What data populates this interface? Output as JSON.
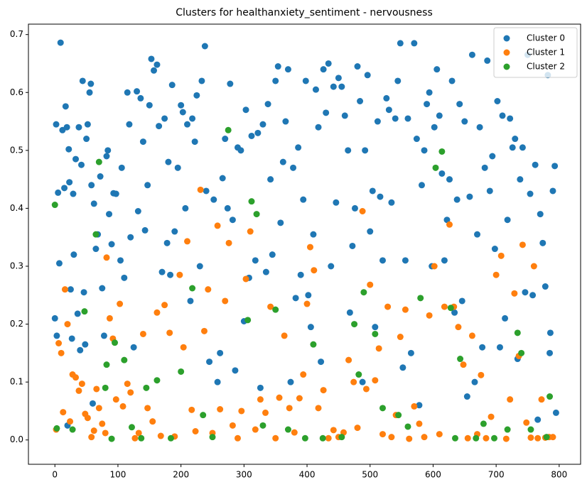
{
  "chart_data": {
    "type": "scatter",
    "title": "Clusters for healthanxiety_sentiment - nervousness",
    "xlim": [
      -42,
      834
    ],
    "ylim": [
      -0.042,
      0.718
    ],
    "xticks": [
      0,
      100,
      200,
      300,
      400,
      500,
      600,
      700,
      800
    ],
    "yticks": [
      {
        "value": 0,
        "label": "0.0"
      },
      0.1,
      0.2,
      0.3,
      0.4,
      0.5,
      0.6,
      0.7
    ],
    "legend": "upper right",
    "series": [
      {
        "name": "Cluster 0",
        "color": "#1f77b4",
        "x": [
          0,
          2,
          3,
          5,
          7,
          9,
          12,
          15,
          17,
          19,
          20,
          22,
          23,
          25,
          27,
          29,
          30,
          33,
          36,
          38,
          40,
          42,
          44,
          46,
          48,
          50,
          52,
          55,
          57,
          58,
          60,
          62,
          65,
          68,
          72,
          75,
          78,
          82,
          84,
          86,
          90,
          93,
          97,
          104,
          106,
          110,
          115,
          118,
          120,
          125,
          130,
          132,
          136,
          140,
          143,
          147,
          150,
          153,
          157,
          162,
          165,
          170,
          174,
          178,
          180,
          183,
          186,
          190,
          195,
          200,
          203,
          207,
          210,
          215,
          218,
          222,
          225,
          230,
          233,
          238,
          240,
          245,
          252,
          258,
          262,
          266,
          270,
          274,
          278,
          282,
          286,
          290,
          295,
          300,
          303,
          308,
          312,
          318,
          322,
          326,
          330,
          335,
          338,
          342,
          345,
          350,
          354,
          358,
          362,
          366,
          370,
          374,
          378,
          382,
          386,
          390,
          394,
          398,
          402,
          406,
          410,
          414,
          418,
          422,
          426,
          430,
          434,
          438,
          442,
          446,
          450,
          455,
          460,
          465,
          468,
          472,
          476,
          480,
          484,
          488,
          492,
          496,
          500,
          504,
          508,
          512,
          516,
          520,
          526,
          530,
          534,
          540,
          544,
          548,
          552,
          556,
          560,
          565,
          570,
          574,
          578,
          582,
          586,
          590,
          594,
          598,
          602,
          606,
          610,
          614,
          618,
          622,
          626,
          630,
          634,
          638,
          642,
          646,
          650,
          654,
          658,
          662,
          666,
          670,
          674,
          678,
          682,
          686,
          690,
          694,
          698,
          702,
          706,
          710,
          714,
          718,
          722,
          726,
          730,
          734,
          738,
          742,
          746,
          750,
          754,
          758,
          762,
          766,
          770,
          774,
          778,
          782,
          786,
          790,
          793,
          795,
          785
        ],
        "values": [
          0.21,
          0.545,
          0.18,
          0.427,
          0.305,
          0.686,
          0.535,
          0.435,
          0.576,
          0.54,
          0.025,
          0.502,
          0.445,
          0.26,
          0.175,
          0.425,
          0.32,
          0.485,
          0.218,
          0.54,
          0.155,
          0.475,
          0.62,
          0.255,
          0.165,
          0.52,
          0.545,
          0.6,
          0.615,
          0.44,
          0.063,
          0.408,
          0.33,
          0.355,
          0.455,
          0.262,
          0.18,
          0.49,
          0.5,
          0.39,
          0.338,
          0.426,
          0.425,
          0.31,
          0.47,
          0.28,
          0.6,
          0.545,
          0.35,
          0.16,
          0.602,
          0.395,
          0.59,
          0.515,
          0.362,
          0.44,
          0.578,
          0.658,
          0.638,
          0.648,
          0.542,
          0.29,
          0.555,
          0.34,
          0.48,
          0.285,
          0.613,
          0.36,
          0.47,
          0.578,
          0.566,
          0.4,
          0.545,
          0.24,
          0.555,
          0.515,
          0.595,
          0.3,
          0.62,
          0.68,
          0.43,
          0.135,
          0.415,
          0.1,
          0.15,
          0.452,
          0.52,
          0.4,
          0.615,
          0.38,
          0.12,
          0.505,
          0.5,
          0.205,
          0.57,
          0.28,
          0.525,
          0.31,
          0.53,
          0.09,
          0.545,
          0.29,
          0.58,
          0.45,
          0.32,
          0.62,
          0.645,
          0.375,
          0.48,
          0.55,
          0.64,
          0.1,
          0.47,
          0.245,
          0.505,
          0.285,
          0.415,
          0.62,
          0.25,
          0.195,
          0.355,
          0.605,
          0.54,
          0.135,
          0.64,
          0.565,
          0.65,
          0.3,
          0.61,
          0.41,
          0.625,
          0.61,
          0.56,
          0.5,
          0.22,
          0.335,
          0.4,
          0.645,
          0.585,
          0.1,
          0.5,
          0.63,
          0.36,
          0.43,
          0.195,
          0.55,
          0.42,
          0.31,
          0.59,
          0.57,
          0.41,
          0.555,
          0.62,
          0.685,
          0.125,
          0.31,
          0.555,
          0.15,
          0.685,
          0.52,
          0.06,
          0.44,
          0.5,
          0.58,
          0.6,
          0.3,
          0.54,
          0.64,
          0.56,
          0.46,
          0.31,
          0.38,
          0.45,
          0.62,
          0.22,
          0.415,
          0.58,
          0.24,
          0.55,
          0.075,
          0.42,
          0.665,
          0.1,
          0.355,
          0.54,
          0.16,
          0.47,
          0.655,
          0.43,
          0.49,
          0.33,
          0.585,
          0.16,
          0.56,
          0.21,
          0.38,
          0.555,
          0.505,
          0.52,
          0.14,
          0.45,
          0.505,
          0.255,
          0.665,
          0.425,
          0.25,
          0.475,
          0.035,
          0.39,
          0.34,
          0.265,
          0.63,
          0.185,
          0.43,
          0.473,
          0.047,
          0.15
        ]
      },
      {
        "name": "Cluster 1",
        "color": "#ff7f0e",
        "x": [
          2,
          6,
          10,
          13,
          16,
          20,
          24,
          28,
          33,
          38,
          43,
          48,
          52,
          58,
          62,
          66,
          70,
          75,
          80,
          82,
          87,
          92,
          97,
          103,
          108,
          115,
          120,
          127,
          133,
          140,
          147,
          155,
          162,
          168,
          174,
          182,
          190,
          198,
          204,
          210,
          217,
          223,
          231,
          237,
          243,
          250,
          258,
          262,
          270,
          276,
          282,
          290,
          296,
          303,
          310,
          318,
          326,
          334,
          342,
          350,
          356,
          364,
          372,
          380,
          388,
          394,
          400,
          405,
          411,
          418,
          426,
          434,
          442,
          450,
          458,
          466,
          474,
          480,
          488,
          494,
          500,
          508,
          514,
          520,
          528,
          534,
          541,
          548,
          556,
          562,
          570,
          578,
          586,
          594,
          602,
          610,
          618,
          626,
          633,
          640,
          648,
          655,
          662,
          670,
          676,
          684,
          692,
          700,
          708,
          716,
          722,
          729,
          736,
          742,
          748,
          755,
          760,
          766,
          772,
          778,
          784,
          790
        ],
        "values": [
          0.018,
          0.167,
          0.15,
          0.048,
          0.26,
          0.2,
          0.032,
          0.113,
          0.108,
          0.085,
          0.097,
          0.045,
          0.038,
          0.005,
          0.016,
          0.088,
          0.055,
          0.028,
          0.012,
          0.315,
          0.21,
          0.175,
          0.07,
          0.235,
          0.058,
          0.097,
          0.082,
          0.003,
          0.012,
          0.183,
          0.055,
          0.032,
          0.22,
          0.007,
          0.233,
          0.185,
          0.006,
          0.285,
          0.16,
          0.343,
          0.052,
          0.015,
          0.432,
          0.188,
          0.26,
          0.012,
          0.37,
          0.053,
          0.24,
          0.34,
          0.025,
          0.003,
          0.05,
          0.278,
          0.36,
          0.018,
          0.07,
          0.047,
          0.23,
          0.003,
          0.073,
          0.18,
          0.055,
          0.013,
          0.072,
          0.113,
          0.235,
          0.333,
          0.293,
          0.055,
          0.086,
          0.003,
          0.017,
          0.005,
          0.013,
          0.138,
          0.1,
          0.021,
          0.395,
          0.088,
          0.268,
          0.103,
          0.158,
          0.01,
          0.23,
          0.005,
          0.043,
          0.178,
          0.225,
          0.002,
          0.058,
          0.028,
          0.005,
          0.215,
          0.3,
          0.01,
          0.23,
          0.372,
          0.23,
          0.195,
          0.13,
          0.003,
          0.18,
          0.01,
          0.112,
          0.003,
          0.04,
          0.285,
          0.318,
          0.002,
          0.07,
          0.253,
          0.145,
          0.337,
          0.03,
          0.004,
          0.3,
          0.003,
          0.07,
          0.004,
          0.005,
          0.005
        ]
      },
      {
        "name": "Cluster 2",
        "color": "#2ca02c",
        "x": [
          0,
          3,
          28,
          47,
          65,
          70,
          80,
          82,
          90,
          95,
          110,
          122,
          137,
          145,
          162,
          184,
          200,
          218,
          235,
          250,
          275,
          306,
          312,
          320,
          330,
          350,
          370,
          397,
          410,
          425,
          455,
          475,
          482,
          490,
          508,
          520,
          545,
          560,
          580,
          604,
          614,
          628,
          635,
          643,
          668,
          680,
          697,
          718,
          734,
          740,
          755,
          780,
          785
        ],
        "values": [
          0.406,
          0.02,
          0.018,
          0.222,
          0.355,
          0.48,
          0.09,
          0.13,
          0.002,
          0.168,
          0.138,
          0.022,
          0.003,
          0.09,
          0.103,
          0.003,
          0.118,
          0.262,
          0.043,
          0.005,
          0.535,
          0.207,
          0.412,
          0.39,
          0.025,
          0.225,
          0.018,
          0.003,
          0.165,
          0.003,
          0.005,
          0.2,
          0.113,
          0.255,
          0.183,
          0.055,
          0.043,
          0.023,
          0.245,
          0.47,
          0.498,
          0.228,
          0.003,
          0.14,
          0.003,
          0.028,
          0.003,
          0.018,
          0.185,
          0.15,
          0.018,
          0.005,
          0.075
        ]
      }
    ]
  }
}
